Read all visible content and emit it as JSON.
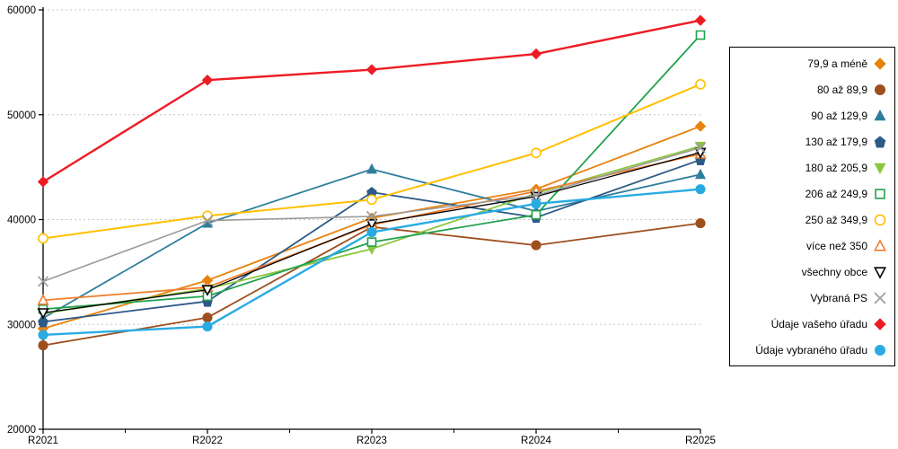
{
  "chart_data": {
    "type": "line",
    "title": "",
    "xlabel": "",
    "ylabel": "",
    "categories": [
      "R2021",
      "R2022",
      "R2023",
      "R2024",
      "R2025"
    ],
    "ylim": [
      20000,
      60000
    ],
    "y_ticks": [
      20000,
      30000,
      40000,
      50000,
      60000
    ],
    "grid": "horizontal dashed gridlines at 30000, 40000, 50000, 60000",
    "legend_position": "right outside plot, black-bordered box, markers right of labels",
    "series": [
      {
        "name": "79,9 a méně",
        "color": "#E8820D",
        "marker": "diamond",
        "open": false,
        "line_width": 1.8,
        "values": [
          29600,
          34200,
          40150,
          42900,
          48900
        ]
      },
      {
        "name": "80 až 89,9",
        "color": "#9E4F1E",
        "marker": "circle",
        "open": false,
        "line_width": 1.8,
        "values": [
          28000,
          30650,
          39300,
          37550,
          39650
        ]
      },
      {
        "name": "90 až 129,9",
        "color": "#2F7E9D",
        "marker": "triangle-up",
        "open": false,
        "line_width": 1.8,
        "values": [
          30600,
          39650,
          44800,
          40800,
          44300
        ]
      },
      {
        "name": "130 až 179,9",
        "color": "#2D5A87",
        "marker": "pentagon",
        "open": false,
        "line_width": 1.8,
        "values": [
          30250,
          32200,
          42600,
          40200,
          45700
        ]
      },
      {
        "name": "180 až 205,9",
        "color": "#8CC63F",
        "marker": "triangle-down",
        "open": false,
        "line_width": 1.8,
        "values": [
          31050,
          33400,
          37200,
          42500,
          47000
        ]
      },
      {
        "name": "206 až 249,9",
        "color": "#22A24F",
        "marker": "square",
        "open": true,
        "line_width": 1.8,
        "values": [
          31450,
          32700,
          37850,
          40450,
          57600
        ]
      },
      {
        "name": "250 až 349,9",
        "color": "#FFC000",
        "marker": "circle",
        "open": true,
        "line_width": 2.0,
        "values": [
          38200,
          40350,
          41900,
          46350,
          52900
        ]
      },
      {
        "name": "více než 350",
        "color": "#F07D2C",
        "marker": "triangle-up",
        "open": true,
        "line_width": 1.8,
        "values": [
          32300,
          33550,
          39500,
          42700,
          46250
        ]
      },
      {
        "name": "všechny obce",
        "color": "#000000",
        "marker": "triangle-down",
        "open": true,
        "line_width": 1.3,
        "values": [
          31100,
          33300,
          39600,
          42200,
          46400
        ]
      },
      {
        "name": "Vybraná PS",
        "color": "#9B9B9B",
        "marker": "x",
        "open": true,
        "line_width": 1.6,
        "values": [
          34100,
          39900,
          40300,
          42300,
          46850
        ]
      },
      {
        "name": "Údaje vašeho úřadu",
        "color": "#ED1C24",
        "marker": "diamond",
        "open": false,
        "line_width": 2.4,
        "values": [
          43600,
          53300,
          54300,
          55800,
          59000
        ]
      },
      {
        "name": "Údaje vybraného úřadu",
        "color": "#29ABE2",
        "marker": "circle",
        "open": false,
        "line_width": 2.4,
        "values": [
          29000,
          29800,
          38800,
          41500,
          42900
        ]
      }
    ]
  },
  "layout_hints": {
    "axis_color": "#000000",
    "gridline_color": "#C8C8C8"
  }
}
